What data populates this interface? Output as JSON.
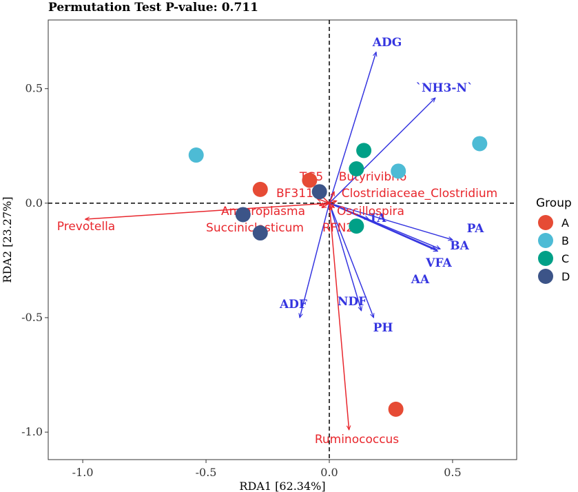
{
  "chart_data": {
    "type": "scatter",
    "title": "Permutation Test P-value: 0.711",
    "xlabel": "RDA1 [62.34%]",
    "ylabel": "RDA2 [23.27%]",
    "xlim": [
      -1.14,
      0.76
    ],
    "ylim": [
      -1.12,
      0.8
    ],
    "xticks": [
      -1.0,
      -0.5,
      0.0,
      0.5
    ],
    "xtick_labels": [
      "-1.0",
      "-0.5",
      "0.0",
      "0.5"
    ],
    "yticks": [
      -1.0,
      -0.5,
      0.0,
      0.5
    ],
    "ytick_labels": [
      "-1.0",
      "-0.5",
      "0.0",
      "0.5"
    ],
    "grid": false,
    "legend": {
      "title": "Group",
      "placement": "right",
      "entries": [
        {
          "label": "A",
          "color": "#E64B35"
        },
        {
          "label": "B",
          "color": "#4DBBD5"
        },
        {
          "label": "C",
          "color": "#00A087"
        },
        {
          "label": "D",
          "color": "#3C5488"
        }
      ]
    },
    "samples": [
      {
        "group": "A",
        "x": -0.28,
        "y": 0.06
      },
      {
        "group": "A",
        "x": -0.08,
        "y": 0.1
      },
      {
        "group": "A",
        "x": 0.27,
        "y": -0.9
      },
      {
        "group": "B",
        "x": -0.54,
        "y": 0.21
      },
      {
        "group": "B",
        "x": 0.28,
        "y": 0.14
      },
      {
        "group": "B",
        "x": 0.61,
        "y": 0.26
      },
      {
        "group": "C",
        "x": 0.14,
        "y": 0.23
      },
      {
        "group": "C",
        "x": 0.11,
        "y": 0.15
      },
      {
        "group": "C",
        "x": 0.11,
        "y": -0.1
      },
      {
        "group": "D",
        "x": -0.04,
        "y": 0.05
      },
      {
        "group": "D",
        "x": -0.35,
        "y": -0.05
      },
      {
        "group": "D",
        "x": -0.28,
        "y": -0.13
      }
    ],
    "env_vectors": {
      "color": "#3535E0",
      "items": [
        {
          "label": "ADG",
          "x": 0.19,
          "y": 0.66
        },
        {
          "label": "`NH3-N`",
          "x": 0.43,
          "y": 0.46
        },
        {
          "label": "PA",
          "x": 0.5,
          "y": -0.16
        },
        {
          "label": "BA",
          "x": 0.45,
          "y": -0.2
        },
        {
          "label": "VFA",
          "x": 0.44,
          "y": -0.21
        },
        {
          "label": "AA",
          "x": 0.43,
          "y": -0.2
        },
        {
          "label": "TA",
          "x": 0.16,
          "y": -0.07
        },
        {
          "label": "ADF",
          "x": -0.12,
          "y": -0.5
        },
        {
          "label": "NDF",
          "x": 0.13,
          "y": -0.47
        },
        {
          "label": "PH",
          "x": 0.18,
          "y": -0.5
        }
      ]
    },
    "taxa_vectors": {
      "color": "#E8262C",
      "items": [
        {
          "label": "Prevotella",
          "x": -0.99,
          "y": -0.07
        },
        {
          "label": "Ruminococcus",
          "x": 0.08,
          "y": -0.99
        },
        {
          "label": "TG5",
          "x": -0.04,
          "y": 0.04
        },
        {
          "label": "Butyrivibrio",
          "x": 0.02,
          "y": 0.05
        },
        {
          "label": "BF311",
          "x": -0.05,
          "y": 0.02
        },
        {
          "label": "Clostridiaceae_Clostridium",
          "x": 0.03,
          "y": 0.01
        },
        {
          "label": "Anaeroplasma",
          "x": -0.04,
          "y": -0.01
        },
        {
          "label": "Oscillospira",
          "x": 0.02,
          "y": -0.02
        },
        {
          "label": "Succiniclasticum",
          "x": -0.03,
          "y": -0.02
        },
        {
          "label": "RFN20",
          "x": 0.01,
          "y": -0.03
        }
      ]
    }
  }
}
